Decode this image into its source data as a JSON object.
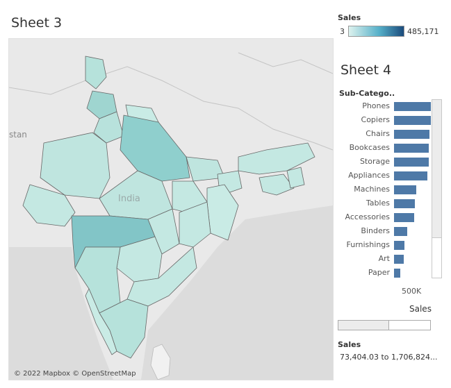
{
  "sheet3": {
    "title": "Sheet 3",
    "map_label": "India",
    "neighbor_label": "stan",
    "attribution": "© 2022 Mapbox © OpenStreetMap"
  },
  "legend": {
    "title": "Sales",
    "min": "3",
    "max": "485,171",
    "colors": [
      "#ddf2ee",
      "#56b0c9",
      "#1b4b7c"
    ]
  },
  "sheet4": {
    "title": "Sheet 4",
    "header": "Sub-Catego..",
    "axis_tick": "500K",
    "axis_title": "Sales"
  },
  "chart_data": {
    "type": "bar",
    "orientation": "horizontal",
    "categories": [
      "Phones",
      "Copiers",
      "Chairs",
      "Bookcases",
      "Storage",
      "Appliances",
      "Machines",
      "Tables",
      "Accessories",
      "Binders",
      "Furnishings",
      "Art",
      "Paper"
    ],
    "values": [
      1706824,
      1700000,
      1650000,
      1620000,
      1600000,
      1560000,
      1020000,
      960000,
      940000,
      600000,
      470000,
      460000,
      300000
    ],
    "xlabel": "Sales",
    "ylabel": "Sub-Catego..",
    "xlim": [
      0,
      2200000
    ],
    "bar_color": "#4e79a7"
  },
  "filter": {
    "title": "Sales",
    "range_text": "73,404.03 to 1,706,824..."
  }
}
